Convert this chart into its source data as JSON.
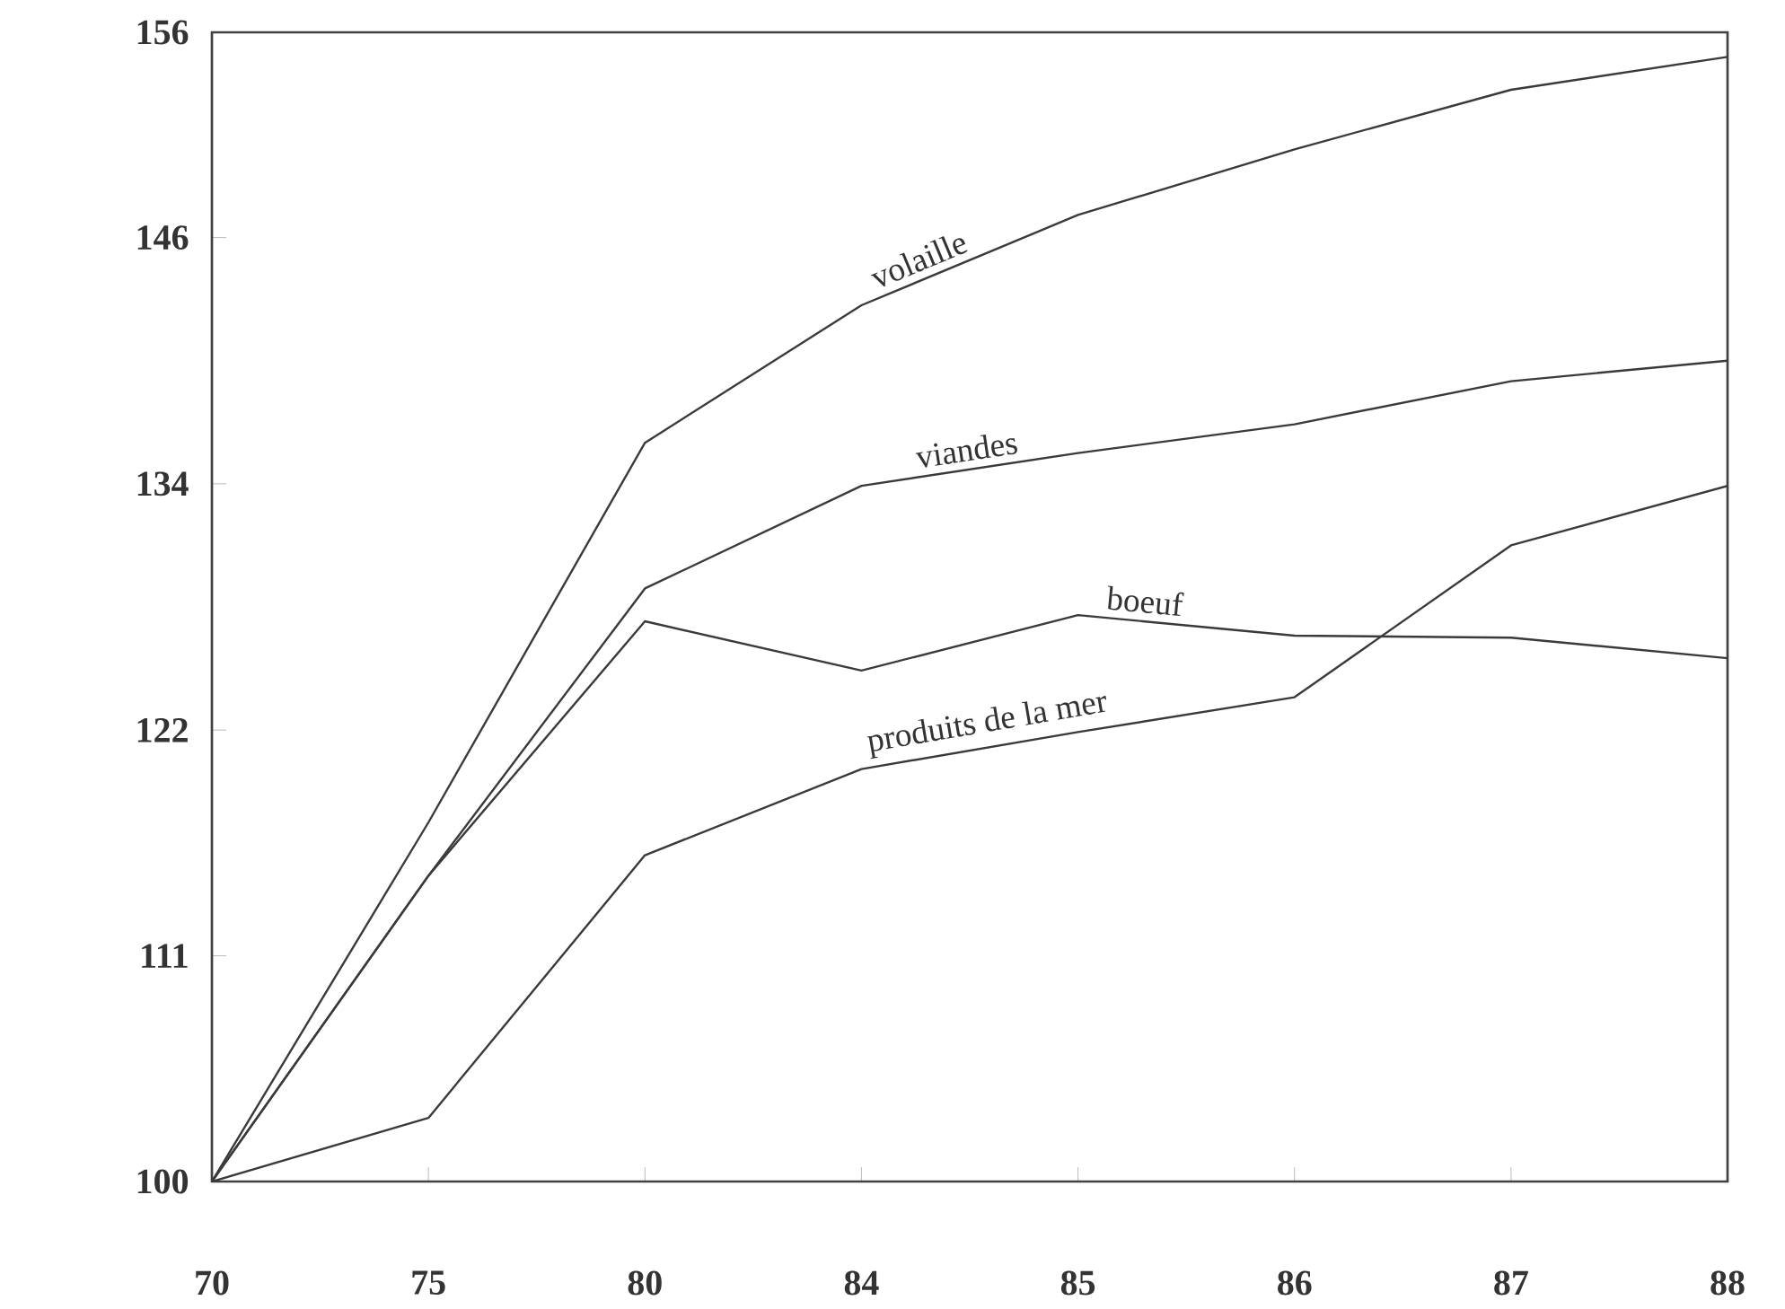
{
  "chart_data": {
    "type": "line",
    "categories": [
      "70",
      "75",
      "80",
      "84",
      "85",
      "86",
      "87",
      "88"
    ],
    "ylim": [
      100,
      156
    ],
    "yticks": [
      100,
      111,
      122,
      134,
      146,
      156
    ],
    "marker": "none",
    "line_style": "solid",
    "grid": false,
    "legend": false,
    "series": [
      {
        "name": "volaille",
        "color": "#3a3a3a",
        "values": [
          100,
          117.5,
          136,
          142.7,
          147.1,
          150.3,
          153.2,
          154.8
        ]
      },
      {
        "name": "viandes",
        "color": "#3a3a3a",
        "values": [
          100,
          114.9,
          128.9,
          133.9,
          135.5,
          136.9,
          139,
          140
        ]
      },
      {
        "name": "boeuf",
        "color": "#3a3a3a",
        "values": [
          100,
          114.9,
          127.3,
          124.9,
          127.6,
          126.6,
          126.5,
          125.5
        ]
      },
      {
        "name": "produits de la mer",
        "color": "#3a3a3a",
        "values": [
          100,
          103.1,
          115.9,
          120.1,
          121.9,
          123.6,
          131,
          133.9
        ]
      }
    ]
  }
}
